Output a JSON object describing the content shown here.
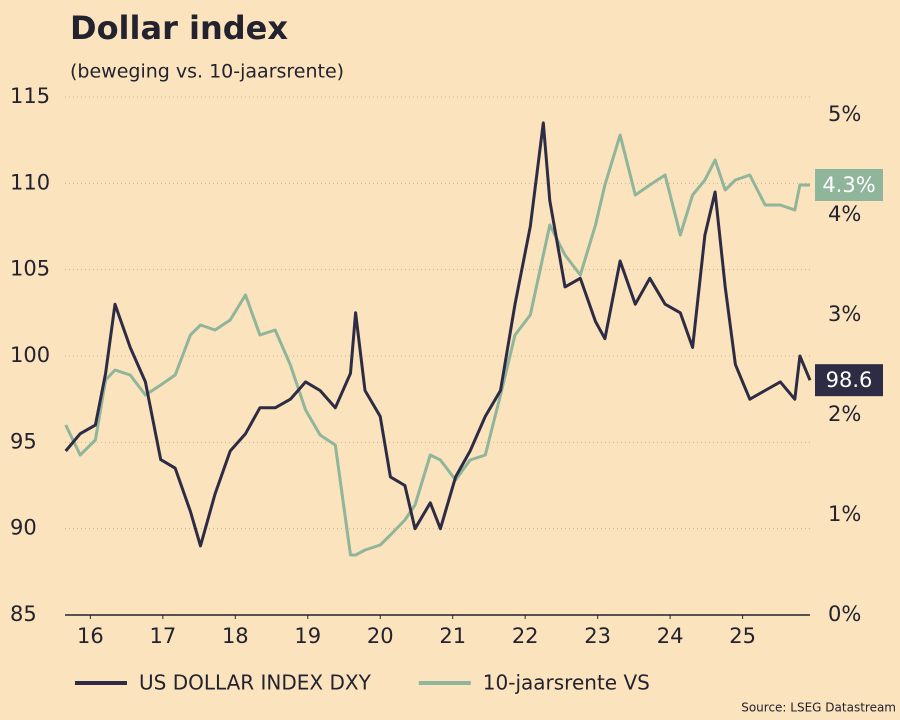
{
  "chart_data": {
    "type": "line",
    "title": "Dollar index",
    "subtitle": "(beweging vs. 10-jaarsrente)",
    "source": "Source: LSEG Datastream",
    "x": [
      16.16,
      16.36,
      16.57,
      16.71,
      16.84,
      17.05,
      17.26,
      17.47,
      17.67,
      17.88,
      18.02,
      18.22,
      18.43,
      18.64,
      18.84,
      19.05,
      19.26,
      19.47,
      19.67,
      19.88,
      20.09,
      20.16,
      20.29,
      20.5,
      20.64,
      20.84,
      20.98,
      21.19,
      21.33,
      21.54,
      21.74,
      21.95,
      22.16,
      22.36,
      22.57,
      22.75,
      22.84,
      23.05,
      23.26,
      23.47,
      23.6,
      23.81,
      24.02,
      24.22,
      24.43,
      24.64,
      24.81,
      24.98,
      25.12,
      25.26,
      25.4,
      25.6,
      25.81,
      26.02,
      26.22,
      26.29,
      26.43
    ],
    "series": [
      {
        "name": "10-jaarsrente VS",
        "color": "#8fb59a",
        "axis": "y2",
        "end_label": "4.3%",
        "values": [
          1.9,
          1.6,
          1.75,
          2.35,
          2.45,
          2.4,
          2.2,
          2.3,
          2.4,
          2.8,
          2.9,
          2.85,
          2.95,
          3.2,
          2.8,
          2.85,
          2.5,
          2.05,
          1.8,
          1.7,
          0.6,
          0.6,
          0.65,
          0.7,
          0.8,
          0.95,
          1.1,
          1.6,
          1.55,
          1.35,
          1.55,
          1.6,
          2.2,
          2.8,
          3.0,
          3.6,
          3.9,
          3.6,
          3.4,
          3.9,
          4.3,
          4.8,
          4.2,
          4.3,
          4.4,
          3.8,
          4.2,
          4.35,
          4.55,
          4.25,
          4.35,
          4.4,
          4.1,
          4.1,
          4.05,
          4.3,
          4.3
        ]
      },
      {
        "name": "US DOLLAR INDEX DXY",
        "color": "#2e2c44",
        "end_label": "98.6",
        "values": [
          94.5,
          95.5,
          96,
          99,
          103,
          100.5,
          98.5,
          94,
          93.5,
          91,
          89,
          92,
          94.5,
          95.5,
          97,
          97,
          97.5,
          98.5,
          98,
          97,
          99,
          102.5,
          98,
          96.5,
          93,
          92.5,
          90,
          91.5,
          90,
          93,
          94.5,
          96.5,
          98,
          103,
          107.5,
          113.5,
          109,
          104,
          104.5,
          102,
          101,
          105.5,
          103,
          104.5,
          103,
          102.5,
          100.5,
          107,
          109.5,
          104,
          99.5,
          97.5,
          98,
          98.5,
          97.5,
          100,
          98.6
        ]
      }
    ],
    "xlim": [
      16.15,
      26.43
    ],
    "xticks": [
      {
        "value": 16.5,
        "label": "16"
      },
      {
        "value": 17.5,
        "label": "17"
      },
      {
        "value": 18.5,
        "label": "18"
      },
      {
        "value": 19.5,
        "label": "19"
      },
      {
        "value": 20.5,
        "label": "20"
      },
      {
        "value": 21.5,
        "label": "21"
      },
      {
        "value": 22.5,
        "label": "22"
      },
      {
        "value": 23.5,
        "label": "23"
      },
      {
        "value": 24.5,
        "label": "24"
      },
      {
        "value": 25.5,
        "label": "25"
      }
    ],
    "ylim": [
      85,
      115
    ],
    "yticks": [
      85,
      90,
      95,
      100,
      105,
      110,
      115
    ],
    "y2lim": [
      0,
      5.18
    ],
    "y2ticks": [
      {
        "value": 0,
        "label": "0%"
      },
      {
        "value": 1,
        "label": "1%"
      },
      {
        "value": 2,
        "label": "2%"
      },
      {
        "value": 3,
        "label": "3%"
      },
      {
        "value": 4,
        "label": "4%"
      },
      {
        "value": 5,
        "label": "5%"
      }
    ],
    "grid": true
  }
}
